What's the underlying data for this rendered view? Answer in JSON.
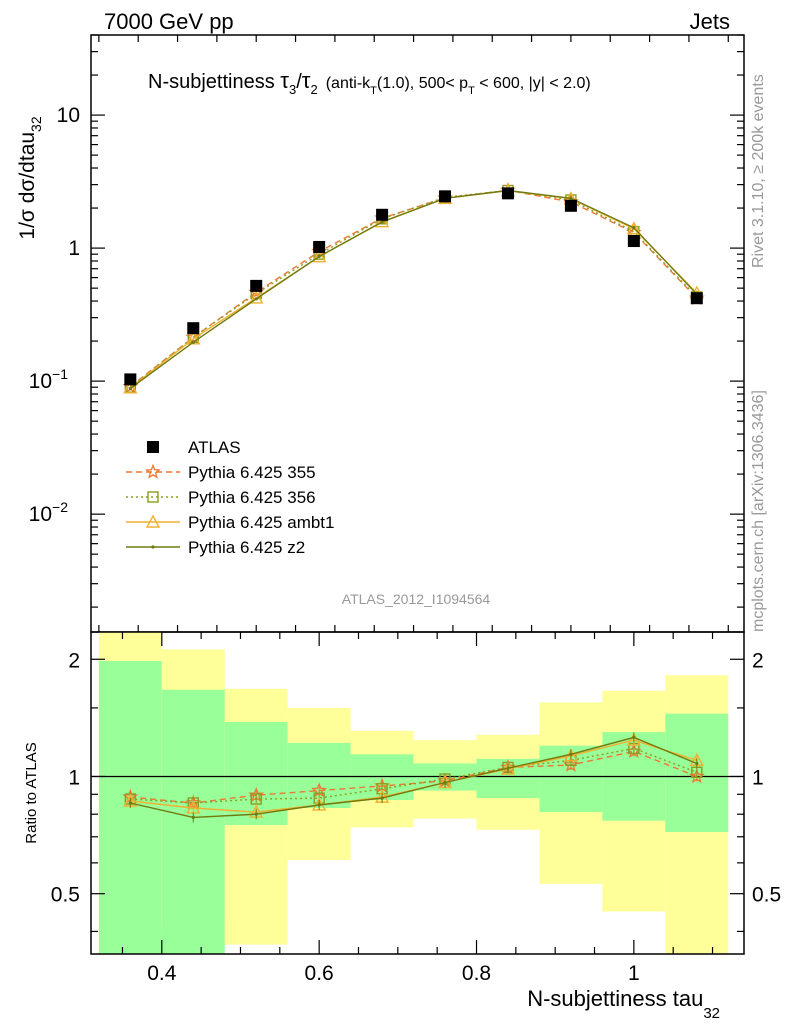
{
  "header": {
    "left": "7000 GeV pp",
    "right": "Jets"
  },
  "side_labels": {
    "rivet": "Rivet 3.1.10, ≥ 200k events",
    "mcplots": "mcplots.cern.ch [arXiv:1306.3436]"
  },
  "analysis_label": "ATLAS_2012_I1094564",
  "colors": {
    "atlas": "#000000",
    "p355": "#ee7733",
    "p356": "#88a020",
    "ambt1": "#f0b030",
    "z2": "#707a10",
    "band_inner": "#99ff99",
    "band_outer": "#ffff99"
  },
  "chart_data": [
    {
      "type": "scatter",
      "title": "N-subjettiness τ₃/τ₂ (anti-k_T(1.0), 500< p_T < 600, |y| < 2.0)",
      "title_parts": {
        "main": "N-subjettiness ",
        "tau": "τ",
        "sub3": "3",
        "slash": "/",
        "sub2": "2",
        "rest1": "(anti-k",
        "subT1": "T",
        "rest2": "(1.0), 500< p",
        "subT2": "T",
        "rest3": " < 600, |y| < 2.0)"
      },
      "ylabel": "1/σ dσ/dtau",
      "ylabel_sub": "32",
      "yscale": "log",
      "ylim": [
        0.0013,
        40
      ],
      "xlim": [
        0.31,
        1.14
      ],
      "yticks": [
        {
          "value": 0.01,
          "base": "10",
          "exp": "−2"
        },
        {
          "value": 0.1,
          "base": "10",
          "exp": "−1"
        },
        {
          "value": 1,
          "base": "1",
          "exp": ""
        },
        {
          "value": 10,
          "base": "10",
          "exp": ""
        }
      ],
      "x": [
        0.36,
        0.44,
        0.52,
        0.6,
        0.68,
        0.76,
        0.84,
        0.92,
        1.0,
        1.08
      ],
      "series": [
        {
          "name": "ATLAS",
          "values": [
            0.103,
            0.25,
            0.52,
            1.02,
            1.78,
            2.45,
            2.58,
            2.08,
            1.13,
            0.42
          ]
        },
        {
          "name": "Pythia 6.425 355",
          "values": [
            0.091,
            0.213,
            0.465,
            0.94,
            1.68,
            2.38,
            2.72,
            2.22,
            1.31,
            0.42
          ]
        },
        {
          "name": "Pythia 6.425 356",
          "values": [
            0.09,
            0.214,
            0.455,
            0.9,
            1.66,
            2.41,
            2.71,
            2.3,
            1.33,
            0.43
          ]
        },
        {
          "name": "Pythia 6.425 ambt1",
          "values": [
            0.089,
            0.208,
            0.422,
            0.862,
            1.58,
            2.37,
            2.7,
            2.35,
            1.4,
            0.46
          ]
        },
        {
          "name": "Pythia 6.425 z2",
          "values": [
            0.088,
            0.196,
            0.415,
            0.865,
            1.57,
            2.37,
            2.71,
            2.37,
            1.42,
            0.45
          ]
        }
      ],
      "legend": "left"
    },
    {
      "type": "line",
      "ylabel": "Ratio to ATLAS",
      "ylim": [
        0.35,
        2.35
      ],
      "xlim": [
        0.31,
        1.14
      ],
      "xlabel": "N-subjettiness tau",
      "xlabel_sub": "32",
      "xticks": [
        "0.4",
        "0.6",
        "0.8",
        "1"
      ],
      "yticks": [
        "0.5",
        "1",
        "2"
      ],
      "bins": [
        [
          0.32,
          0.4
        ],
        [
          0.4,
          0.48
        ],
        [
          0.48,
          0.56
        ],
        [
          0.56,
          0.64
        ],
        [
          0.64,
          0.72
        ],
        [
          0.72,
          0.8
        ],
        [
          0.8,
          0.88
        ],
        [
          0.88,
          0.96
        ],
        [
          0.96,
          1.04
        ],
        [
          1.04,
          1.12
        ]
      ],
      "band_inner": [
        [
          0.35,
          1.98
        ],
        [
          0.35,
          1.67
        ],
        [
          0.75,
          1.38
        ],
        [
          0.83,
          1.22
        ],
        [
          0.87,
          1.14
        ],
        [
          0.92,
          1.08
        ],
        [
          0.88,
          1.11
        ],
        [
          0.81,
          1.2
        ],
        [
          0.77,
          1.3
        ],
        [
          0.72,
          1.45
        ]
      ],
      "band_outer": [
        [
          0.35,
          2.35
        ],
        [
          0.42,
          2.12
        ],
        [
          0.37,
          1.68
        ],
        [
          0.61,
          1.5
        ],
        [
          0.74,
          1.31
        ],
        [
          0.78,
          1.24
        ],
        [
          0.73,
          1.28
        ],
        [
          0.53,
          1.55
        ],
        [
          0.45,
          1.66
        ],
        [
          0.35,
          1.82
        ]
      ],
      "x": [
        0.36,
        0.44,
        0.52,
        0.6,
        0.68,
        0.76,
        0.84,
        0.92,
        1.0,
        1.08
      ],
      "series": [
        {
          "name": "Pythia 6.425 355",
          "values": [
            0.885,
            0.855,
            0.895,
            0.92,
            0.945,
            0.975,
            1.055,
            1.07,
            1.16,
            1.0
          ]
        },
        {
          "name": "Pythia 6.425 356",
          "values": [
            0.875,
            0.855,
            0.875,
            0.88,
            0.93,
            0.985,
            1.055,
            1.1,
            1.18,
            1.025
          ]
        },
        {
          "name": "Pythia 6.425 ambt1",
          "values": [
            0.865,
            0.83,
            0.81,
            0.845,
            0.885,
            0.965,
            1.045,
            1.13,
            1.24,
            1.1
          ]
        },
        {
          "name": "Pythia 6.425 z2",
          "values": [
            0.855,
            0.785,
            0.8,
            0.845,
            0.88,
            0.965,
            1.05,
            1.14,
            1.26,
            1.08
          ]
        }
      ]
    }
  ]
}
